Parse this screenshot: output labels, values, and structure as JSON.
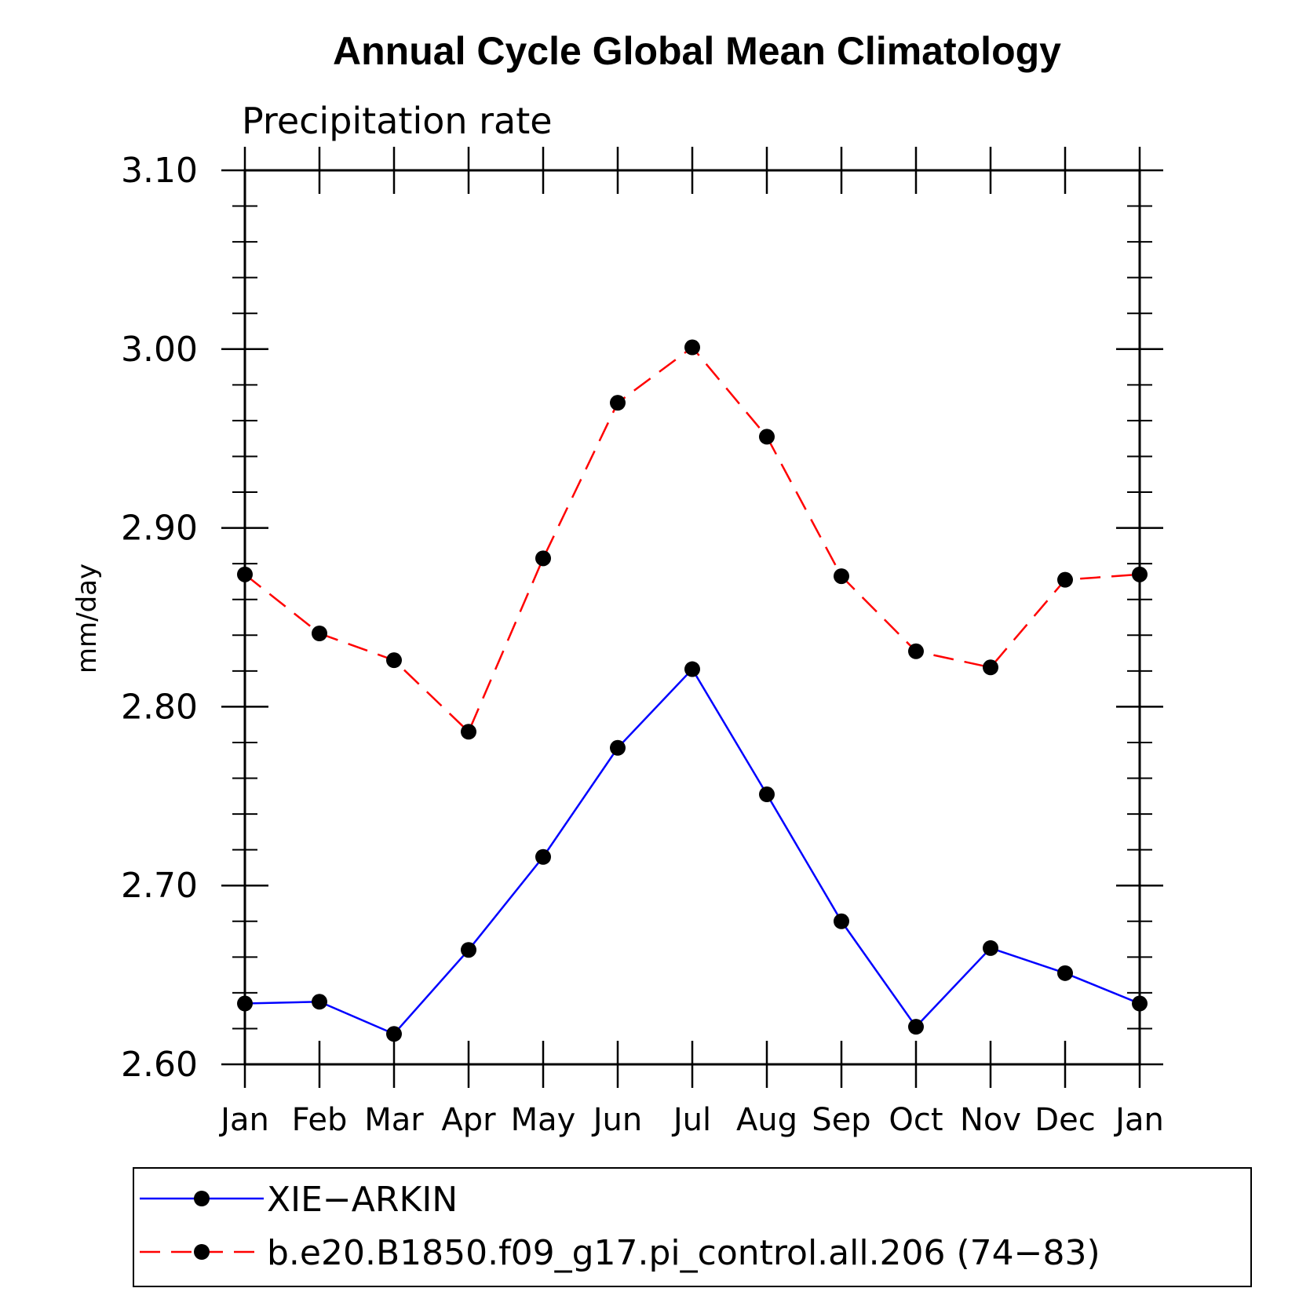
{
  "chart_data": {
    "type": "line",
    "title": "Annual Cycle Global Mean Climatology",
    "subtitle": "Precipitation rate",
    "ylabel": "mm/day",
    "xlabel": "",
    "categories": [
      "Jan",
      "Feb",
      "Mar",
      "Apr",
      "May",
      "Jun",
      "Jul",
      "Aug",
      "Sep",
      "Oct",
      "Nov",
      "Dec",
      "Jan"
    ],
    "ylim": [
      2.6,
      3.1
    ],
    "yticks": [
      2.6,
      2.7,
      2.8,
      2.9,
      3.0,
      3.1
    ],
    "ytick_labels": [
      "2.60",
      "2.70",
      "2.80",
      "2.90",
      "3.00",
      "3.10"
    ],
    "yminor_step": 0.02,
    "grid": false,
    "legend_position": "bottom",
    "series": [
      {
        "name": "XIE−ARKIN",
        "color": "#0000ff",
        "dash": "solid",
        "values": [
          2.634,
          2.635,
          2.617,
          2.664,
          2.716,
          2.777,
          2.821,
          2.751,
          2.68,
          2.621,
          2.665,
          2.651,
          2.634
        ]
      },
      {
        "name": "b.e20.B1850.f09_g17.pi_control.all.206 (74−83)",
        "color": "#ff0000",
        "dash": "dashed",
        "values": [
          2.874,
          2.841,
          2.826,
          2.786,
          2.883,
          2.97,
          3.001,
          2.951,
          2.873,
          2.831,
          2.822,
          2.871,
          2.874
        ]
      }
    ]
  }
}
